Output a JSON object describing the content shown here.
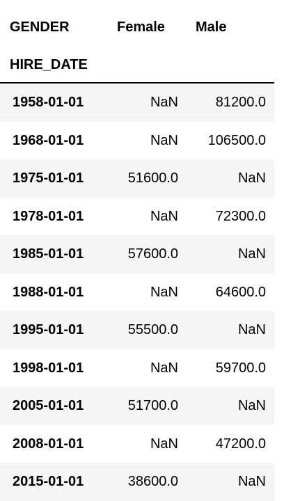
{
  "columns": {
    "level_name": "GENDER",
    "female": "Female",
    "male": "Male"
  },
  "index_name": "HIRE_DATE",
  "rows": [
    {
      "hire_date": "1958-01-01",
      "female": "NaN",
      "male": "81200.0"
    },
    {
      "hire_date": "1968-01-01",
      "female": "NaN",
      "male": "106500.0"
    },
    {
      "hire_date": "1975-01-01",
      "female": "51600.0",
      "male": "NaN"
    },
    {
      "hire_date": "1978-01-01",
      "female": "NaN",
      "male": "72300.0"
    },
    {
      "hire_date": "1985-01-01",
      "female": "57600.0",
      "male": "NaN"
    },
    {
      "hire_date": "1988-01-01",
      "female": "NaN",
      "male": "64600.0"
    },
    {
      "hire_date": "1995-01-01",
      "female": "55500.0",
      "male": "NaN"
    },
    {
      "hire_date": "1998-01-01",
      "female": "NaN",
      "male": "59700.0"
    },
    {
      "hire_date": "2005-01-01",
      "female": "51700.0",
      "male": "NaN"
    },
    {
      "hire_date": "2008-01-01",
      "female": "NaN",
      "male": "47200.0"
    },
    {
      "hire_date": "2015-01-01",
      "female": "38600.0",
      "male": "NaN"
    }
  ],
  "colors": {
    "stripe": "#f5f5f5",
    "background": "#ffffff",
    "text": "#000000",
    "rule": "#000000"
  }
}
